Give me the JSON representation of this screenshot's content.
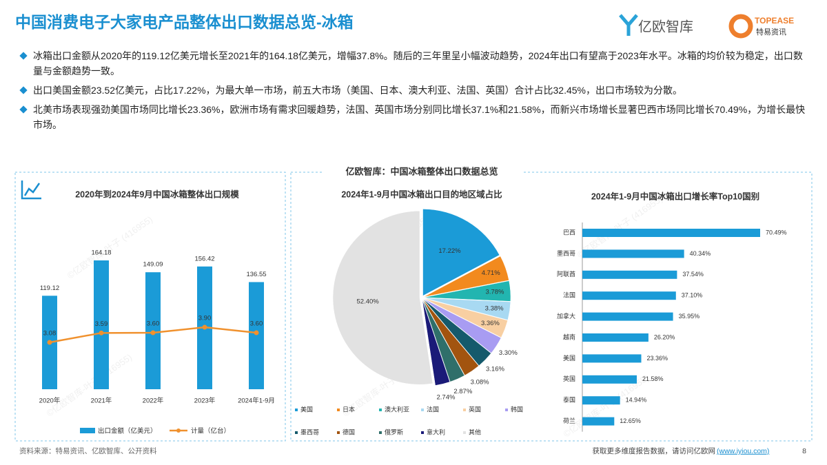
{
  "header": {
    "title": "中国消费电子大家电产品整体出口数据总览-冰箱",
    "logo_left": "亿欧智库",
    "logo_right_en": "TOPEASE",
    "logo_right_cn": "特易资讯"
  },
  "bullets": [
    "冰箱出口金额从2020年的119.12亿美元增长至2021年的164.18亿美元，增幅37.8%。随后的三年里呈小幅波动趋势，2024年出口有望高于2023年水平。冰箱的均价较为稳定，出口数量与金额趋势一致。",
    "出口美国金额23.52亿美元，占比17.22%，为最大单一市场，前五大市场（美国、日本、澳大利亚、法国、英国）合计占比32.45%，出口市场较为分散。",
    "北美市场表现强劲美国市场同比增长23.36%，欧洲市场有需求回暖趋势，法国、英国市场分别同比增长37.1%和21.58%，而新兴市场增长显著巴西市场同比增长70.49%，为增长最快市场。"
  ],
  "section_title": "亿欧智库：中国冰箱整体出口数据总览",
  "watermark": "©亿欧智库-叶子 (416955)",
  "chart_data": [
    {
      "type": "bar_line",
      "title": "2020年到2024年9月中国冰箱整体出口规模",
      "categories": [
        "2020年",
        "2021年",
        "2022年",
        "2023年",
        "2024年1-9月"
      ],
      "series": [
        {
          "name": "出口金额（亿美元）",
          "type": "bar",
          "color": "#1b9bd7",
          "values": [
            119.12,
            164.18,
            149.09,
            156.42,
            136.55
          ]
        },
        {
          "name": "计量（亿台）",
          "type": "line",
          "color": "#f0912e",
          "values": [
            3.08,
            3.59,
            3.6,
            3.9,
            3.6
          ],
          "value_labels": [
            "3.08",
            "3.59",
            "3.60",
            "3.90",
            "3.60"
          ]
        }
      ]
    },
    {
      "type": "pie",
      "title": "2024年1-9月中国冰箱出口目的地区域占比",
      "categories": [
        "美国",
        "日本",
        "澳大利亚",
        "法国",
        "英国",
        "韩国",
        "墨西哥",
        "德国",
        "俄罗斯",
        "意大利",
        "其他"
      ],
      "values": [
        17.22,
        4.71,
        3.78,
        3.38,
        3.36,
        3.3,
        3.16,
        3.08,
        2.87,
        2.74,
        52.4
      ],
      "value_labels": [
        "17.22%",
        "4.71%",
        "3.78%",
        "3.38%",
        "3.36%",
        "3.30%",
        "3.16%",
        "3.08%",
        "2.87%",
        "2.74%",
        "52.40%"
      ],
      "colors": [
        "#1b9bd7",
        "#f28a1e",
        "#22b5b0",
        "#a8d9f2",
        "#f8cfa2",
        "#a89cf2",
        "#155a6c",
        "#a2540f",
        "#2f6f6a",
        "#1a1a78",
        "#e2e2e2"
      ]
    },
    {
      "type": "hbar",
      "title": "2024年1-9月中国冰箱出口增长率Top10国别",
      "categories": [
        "巴西",
        "墨西哥",
        "阿联酋",
        "法国",
        "加拿大",
        "越南",
        "美国",
        "英国",
        "泰国",
        "荷兰"
      ],
      "values": [
        70.49,
        40.34,
        37.54,
        37.1,
        35.95,
        26.2,
        23.36,
        21.58,
        14.94,
        12.65
      ],
      "value_labels": [
        "70.49%",
        "40.34%",
        "37.54%",
        "37.10%",
        "35.95%",
        "26.20%",
        "23.36%",
        "21.58%",
        "14.94%",
        "12.65%"
      ],
      "color": "#1b9bd7"
    }
  ],
  "footer": {
    "source": "资料来源：特易资讯、亿欧智库、公开资料",
    "more": "获取更多维度报告数据，请访问亿欧网",
    "link": "(www.iyiou.com)",
    "page": "8"
  }
}
